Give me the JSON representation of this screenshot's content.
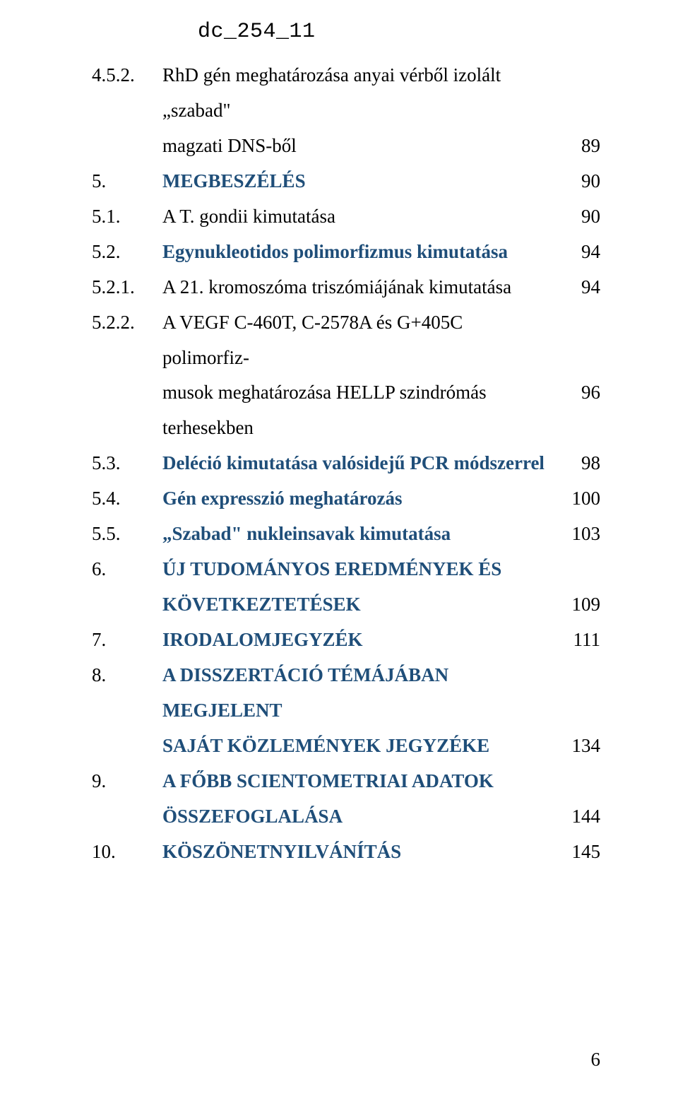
{
  "doc_id": "dc_254_11",
  "page_number": "6",
  "colors": {
    "text": "#000000",
    "heading": "#1f4e79",
    "background": "#ffffff"
  },
  "typography": {
    "body_font": "Times New Roman",
    "mono_font": "Courier New",
    "body_size_pt": 20,
    "line_height": 1.85
  },
  "rows": [
    {
      "num": "4.5.2.",
      "title_a": "RhD gén meghatározása anyai vérből izolált „szabad\"",
      "title_b": "magzati DNS-ből",
      "page": "89",
      "emph": false
    },
    {
      "num": "5.",
      "title_a": "MEGBESZÉLÉS",
      "page": "90",
      "emph": true
    },
    {
      "num": "5.1.",
      "title_a": "A T. gondii kimutatása",
      "page": "90",
      "emph": false
    },
    {
      "num": "5.2.",
      "title_a": "Egynukleotidos polimorfizmus kimutatása",
      "page": "94",
      "emph": true
    },
    {
      "num": "5.2.1.",
      "title_a": "A 21. kromoszóma triszómiájának kimutatása",
      "page": "94",
      "emph": false
    },
    {
      "num": "5.2.2.",
      "title_a": "A VEGF C-460T, C-2578A és G+405C polimorfiz-",
      "title_b": "musok meghatározása HELLP szindrómás terhesekben",
      "page": "96",
      "emph": false
    },
    {
      "num": "5.3.",
      "title_a": "Deléció kimutatása valósidejű PCR módszerrel",
      "page": "98",
      "emph": true
    },
    {
      "num": "5.4.",
      "title_a": "Gén expresszió meghatározás",
      "page": "100",
      "emph": true
    },
    {
      "num": "5.5.",
      "title_a": "„Szabad\" nukleinsavak kimutatása",
      "page": "103",
      "emph": true
    },
    {
      "num": "6.",
      "title_a": "ÚJ TUDOMÁNYOS EREDMÉNYEK ÉS",
      "title_b": "KÖVETKEZTETÉSEK",
      "page": "109",
      "emph": true
    },
    {
      "num": "7.",
      "title_a": "IRODALOMJEGYZÉK",
      "page": "111",
      "emph": true
    },
    {
      "num": "8.",
      "title_a": "A DISSZERTÁCIÓ TÉMÁJÁBAN MEGJELENT",
      "title_b": "SAJÁT KÖZLEMÉNYEK JEGYZÉKE",
      "page": "134",
      "emph": true
    },
    {
      "num": "9.",
      "title_a": "A FŐBB SCIENTOMETRIAI ADATOK",
      "title_b": "ÖSSZEFOGLALÁSA",
      "page": "144",
      "emph": true
    },
    {
      "num": "10.",
      "title_a": "KÖSZÖNETNYILVÁNÍTÁS",
      "page": "145",
      "emph": true
    }
  ]
}
